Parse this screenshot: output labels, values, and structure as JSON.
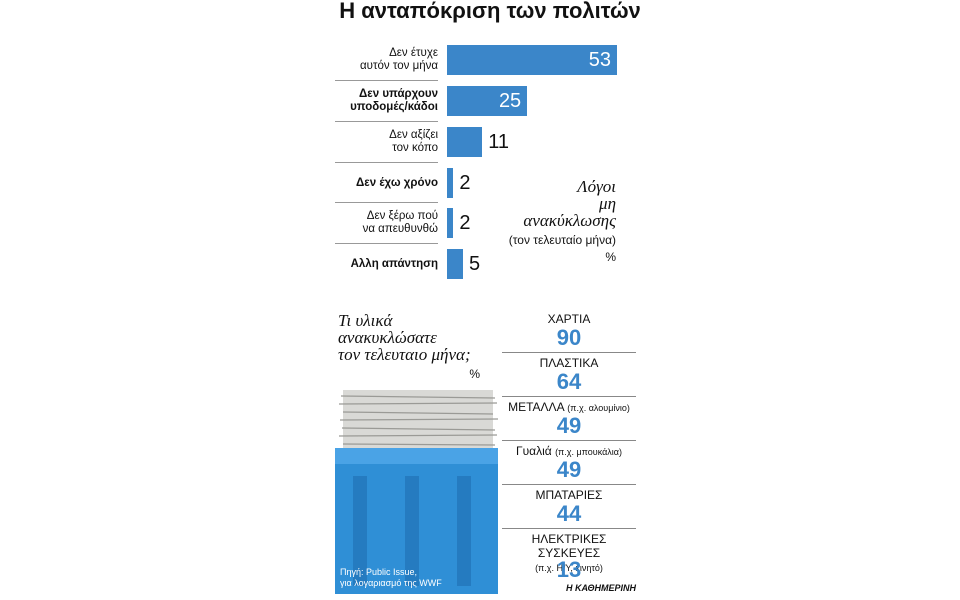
{
  "title": "Η ανταπόκριση των πολιτών",
  "chart_data": [
    {
      "type": "bar",
      "orientation": "horizontal",
      "color": "#3b86c9",
      "categories": [
        "Δεν έτυχε\nαυτόν τον μήνα",
        "Δεν υπάρχουν\nυποδομές/κάδοι",
        "Δεν αξίζει\nτον κόπο",
        "Δεν έχω χρόνο",
        "Δεν ξέρω πού\nνα απευθυνθώ",
        "Αλλη απάντηση"
      ],
      "values": [
        53,
        25,
        11,
        2,
        2,
        5
      ],
      "annotation": "Λόγοι\nμη\nανακύκλωσης",
      "annotation_sub": "(τον τελευταίο μήνα)",
      "unit": "%"
    },
    {
      "type": "list",
      "color": "#3b86c9",
      "title": "Τι υλικά\nανακυκλώσατε\nτον τελευταιο μήνα;",
      "unit": "%",
      "items": [
        {
          "name": "ΧΑΡΤΙΑ",
          "value": 90
        },
        {
          "name": "ΠΛΑΣΤΙΚΑ",
          "value": 64
        },
        {
          "name": "ΜΕΤΑΛΛΑ",
          "note": "(π.χ. αλουμίνιο)",
          "value": 49
        },
        {
          "name": "Γυαλιά",
          "note": "(π.χ. μπουκάλια)",
          "value": 49
        },
        {
          "name": "ΜΠΑΤΑΡΙΕΣ",
          "value": 44
        },
        {
          "name": "ΗΛΕΚΤΡΙΚΕΣ ΣΥΣΚΕΥΕΣ",
          "note": "(π.χ. Η/Υ, κινητό)",
          "value": 13
        }
      ]
    }
  ],
  "source": "Πηγή: Public Issue,\nγια λογαριασμό της WWF",
  "publisher": "Η ΚΑΘΗΜΕΡΙΝΗ"
}
